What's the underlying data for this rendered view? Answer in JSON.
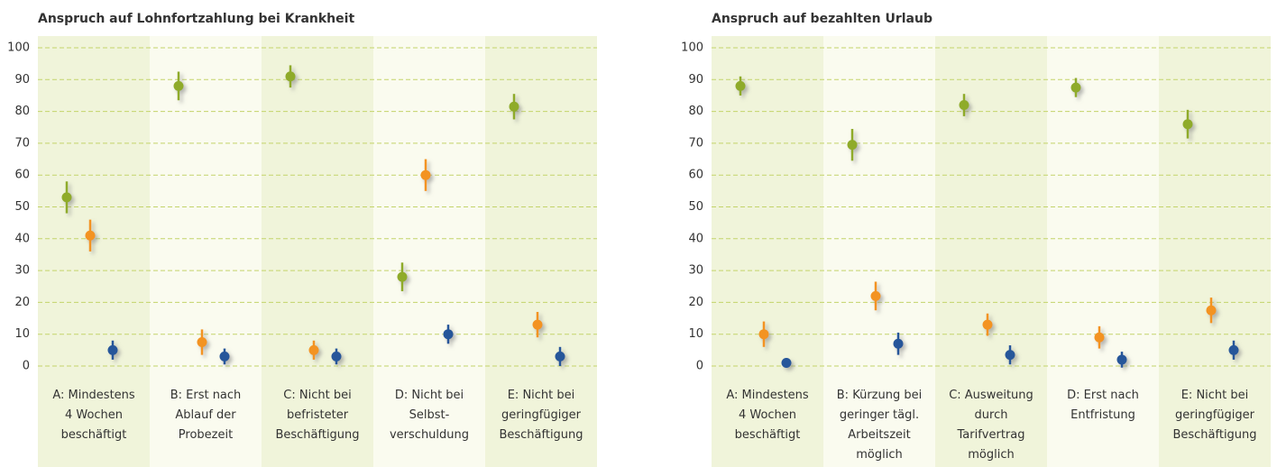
{
  "chart_data": [
    {
      "type": "dot-error",
      "title": "Anspruch auf Lohnfortzahlung bei Krankheit",
      "categories": [
        "A: Mindestens\n4 Wochen\nbeschäftigt",
        "B: Erst nach\nAblauf der\nProbezeit",
        "C: Nicht bei\nbefristeter\nBeschäftigung",
        "D: Nicht bei\nSelbst-\nverschuldung",
        "E: Nicht bei\ngeringfügiger\nBeschäftigung"
      ],
      "series": [
        {
          "color": "#8fab2a",
          "values": [
            53,
            88,
            91,
            28,
            81.5
          ],
          "errors": [
            5,
            4.5,
            3.5,
            4.5,
            4
          ]
        },
        {
          "color": "#f39320",
          "values": [
            41,
            7.5,
            5,
            60,
            13
          ],
          "errors": [
            5,
            4,
            3,
            5,
            4
          ]
        },
        {
          "color": "#25569a",
          "values": [
            5,
            3,
            3,
            10,
            3
          ],
          "errors": [
            3,
            2.5,
            2.5,
            3,
            3
          ]
        }
      ],
      "ylim": [
        0,
        100
      ],
      "yticks": [
        0,
        10,
        20,
        30,
        40,
        50,
        60,
        70,
        80,
        90,
        100
      ],
      "grid": true
    },
    {
      "type": "dot-error",
      "title": "Anspruch auf bezahlten Urlaub",
      "categories": [
        "A: Mindestens\n4 Wochen\nbeschäftigt",
        "B: Kürzung bei\ngeringer tägl.\nArbeitszeit\nmöglich",
        "C: Ausweitung\ndurch\nTarifvertrag\nmöglich",
        "D: Erst nach\nEntfristung",
        "E: Nicht bei\ngeringfügiger\nBeschäftigung"
      ],
      "series": [
        {
          "color": "#8fab2a",
          "values": [
            88,
            69.5,
            82,
            87.5,
            76
          ],
          "errors": [
            3,
            5,
            3.5,
            3,
            4.5
          ]
        },
        {
          "color": "#f39320",
          "values": [
            10,
            22,
            13,
            9,
            17.5
          ],
          "errors": [
            4,
            4.5,
            3.5,
            3.5,
            4
          ]
        },
        {
          "color": "#25569a",
          "values": [
            1,
            7,
            3.5,
            2,
            5
          ],
          "errors": [
            1.5,
            3.5,
            3,
            2.5,
            3
          ]
        }
      ],
      "ylim": [
        0,
        100
      ],
      "yticks": [
        0,
        10,
        20,
        30,
        40,
        50,
        60,
        70,
        80,
        90,
        100
      ],
      "grid": true
    }
  ]
}
